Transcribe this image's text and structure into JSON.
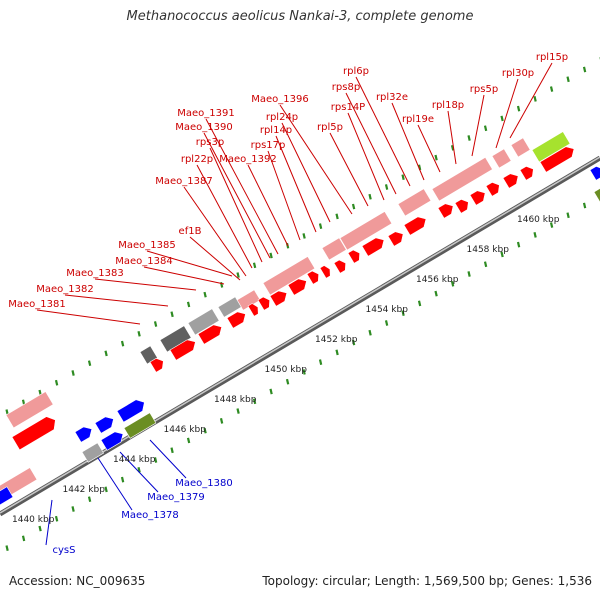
{
  "title": "Methanococcus aeolicus Nankai-3, complete genome",
  "footer": {
    "accession": "Accession: NC_009635",
    "topology": "Topology: circular; Length: 1,569,500 bp; Genes: 1,536"
  },
  "colors": {
    "ribosomal": "#ff0000",
    "ribosomal_light": "#f09a9a",
    "blue": "#0000ff",
    "olive": "#6b8e23",
    "lime": "#a6e22e",
    "gray": "#a0a0a0",
    "dark_gray": "#606060",
    "tick": "#2e8b22",
    "red_label": "#cc0000",
    "blue_label": "#0000cc"
  },
  "scale_labels": [
    {
      "kb": 1440,
      "text": "1440 kbp"
    },
    {
      "kb": 1442,
      "text": "1442 kbp"
    },
    {
      "kb": 1444,
      "text": "1444 kbp"
    },
    {
      "kb": 1446,
      "text": "1446 kbp"
    },
    {
      "kb": 1448,
      "text": "1448 kbp"
    },
    {
      "kb": 1450,
      "text": "1450 kbp"
    },
    {
      "kb": 1452,
      "text": "1452 kbp"
    },
    {
      "kb": 1454,
      "text": "1454 kbp"
    },
    {
      "kb": 1456,
      "text": "1456 kbp"
    },
    {
      "kb": 1458,
      "text": "1458 kbp"
    },
    {
      "kb": 1460,
      "text": "1460 kbp"
    }
  ],
  "gene_labels_red": [
    {
      "text": "rpl15p"
    },
    {
      "text": "rpl30p"
    },
    {
      "text": "rps5p"
    },
    {
      "text": "rpl18p"
    },
    {
      "text": "rpl19e"
    },
    {
      "text": "rpl32e"
    },
    {
      "text": "rpl6p"
    },
    {
      "text": "rps8p"
    },
    {
      "text": "rps14P"
    },
    {
      "text": "rpl5p"
    },
    {
      "text": "Maeo_1396"
    },
    {
      "text": "rpl24p"
    },
    {
      "text": "rpl14p"
    },
    {
      "text": "rps17p"
    },
    {
      "text": "Maeo_1392"
    },
    {
      "text": "Maeo_1391"
    },
    {
      "text": "Maeo_1390"
    },
    {
      "text": "rps3p"
    },
    {
      "text": "rpl22p"
    },
    {
      "text": "Maeo_1387"
    },
    {
      "text": "ef1B"
    },
    {
      "text": "Maeo_1385"
    },
    {
      "text": "Maeo_1384"
    },
    {
      "text": "Maeo_1383"
    },
    {
      "text": "Maeo_1382"
    },
    {
      "text": "Maeo_1381"
    }
  ],
  "gene_labels_blue": [
    {
      "text": "Maeo_1380"
    },
    {
      "text": "Maeo_1379"
    },
    {
      "text": "Maeo_1378"
    },
    {
      "text": "cysS"
    }
  ]
}
